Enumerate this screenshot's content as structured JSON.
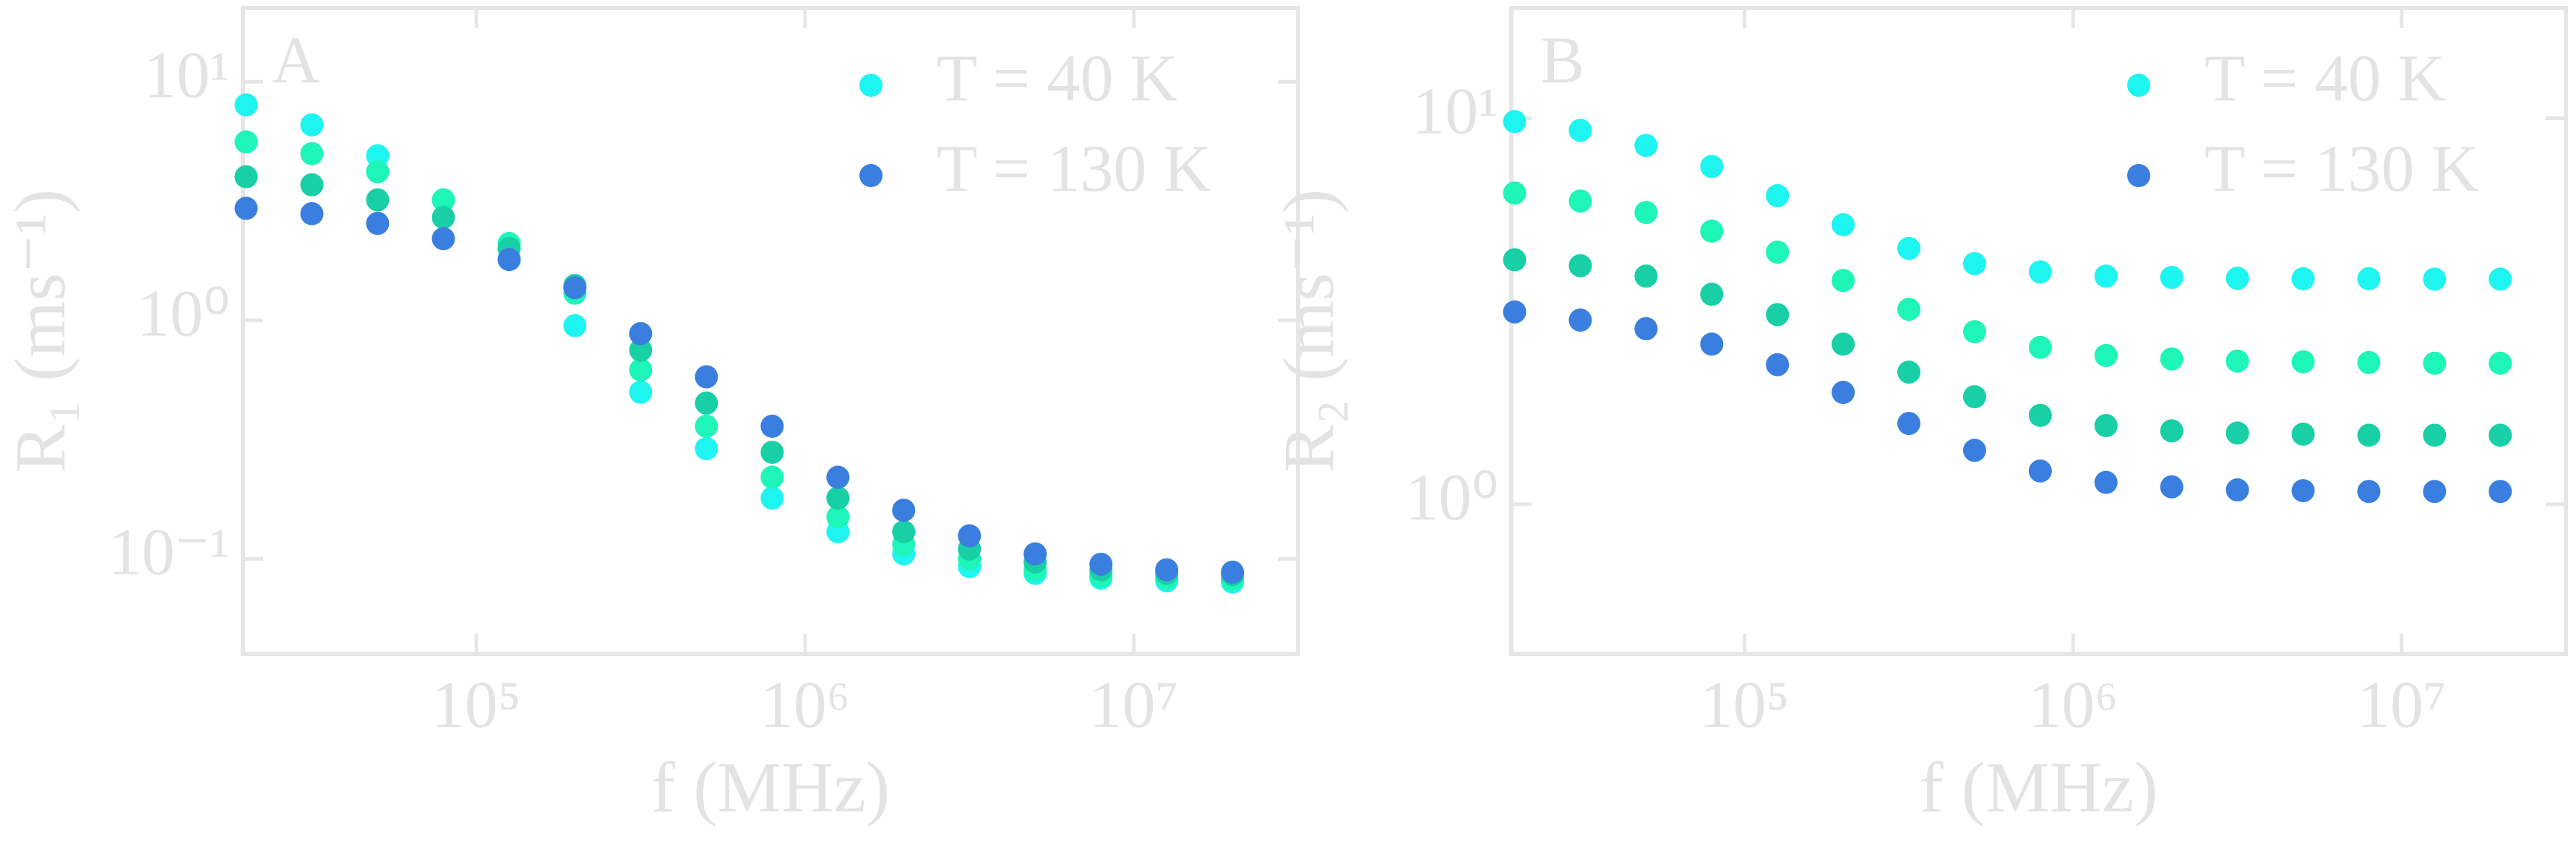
{
  "chart_data": [
    {
      "type": "scatter",
      "panel_label": "A",
      "xlabel": "f (MHz)",
      "ylabel": "R₁ (ms⁻¹)",
      "log_x": true,
      "log_y": true,
      "grid": false,
      "legend": "upper right",
      "xlim": [
        19500,
        31600000
      ],
      "ylim": [
        0.04,
        20.4
      ],
      "xticks": [
        {
          "value": 100000,
          "label": "10⁵"
        },
        {
          "value": 1000000,
          "label": "10⁶"
        },
        {
          "value": 10000000,
          "label": "10⁷"
        }
      ],
      "yticks": [
        {
          "value": 10,
          "label": "10¹"
        },
        {
          "value": 1,
          "label": "10⁰"
        },
        {
          "value": 0.1,
          "label": "10⁻¹"
        }
      ],
      "x": [
        19953,
        31623,
        50119,
        79433,
        125893,
        199526,
        316228,
        501187,
        794328,
        1258925,
        1995262,
        3162278,
        5011872,
        7943282,
        12589254,
        19952623
      ],
      "series": [
        {
          "name": "T = 40 K",
          "color": "#1ef4f0",
          "values": [
            8.0,
            6.6,
            4.9,
            3.2,
            1.8,
            0.95,
            0.5,
            0.29,
            0.18,
            0.13,
            0.105,
            0.093,
            0.087,
            0.083,
            0.081,
            0.08
          ]
        },
        {
          "color": "#1ef5b8",
          "values": [
            5.6,
            5.0,
            4.2,
            3.2,
            2.1,
            1.3,
            0.62,
            0.36,
            0.22,
            0.15,
            0.115,
            0.1,
            0.09,
            0.085,
            0.083,
            0.082
          ]
        },
        {
          "color": "#18cfa6",
          "values": [
            4.0,
            3.7,
            3.2,
            2.7,
            2.0,
            1.4,
            0.75,
            0.45,
            0.28,
            0.18,
            0.13,
            0.11,
            0.097,
            0.09,
            0.087,
            0.086
          ]
        },
        {
          "name": "T = 130 K",
          "color": "#3a7fdf",
          "values": [
            2.95,
            2.8,
            2.55,
            2.2,
            1.8,
            1.37,
            0.88,
            0.58,
            0.36,
            0.22,
            0.16,
            0.125,
            0.105,
            0.095,
            0.09,
            0.088
          ]
        }
      ]
    },
    {
      "type": "scatter",
      "panel_label": "B",
      "xlabel": "f (MHz)",
      "ylabel": "R₂ (ms⁻¹)",
      "log_x": true,
      "log_y": true,
      "grid": false,
      "legend": "upper right",
      "xlim": [
        19500,
        31600000
      ],
      "ylim": [
        0.41,
        19.3
      ],
      "xticks": [
        {
          "value": 100000,
          "label": "10⁵"
        },
        {
          "value": 1000000,
          "label": "10⁶"
        },
        {
          "value": 10000000,
          "label": "10⁷"
        }
      ],
      "yticks": [
        {
          "value": 10,
          "label": "10¹"
        },
        {
          "value": 1,
          "label": "10⁰"
        }
      ],
      "x": [
        19953,
        31623,
        50119,
        79433,
        125893,
        199526,
        316228,
        501187,
        794328,
        1258925,
        1995262,
        3162278,
        5011872,
        7943282,
        12589254,
        19952623
      ],
      "series": [
        {
          "name": "T = 40 K",
          "color": "#1ef4f0",
          "values": [
            9.8,
            9.3,
            8.5,
            7.5,
            6.3,
            5.3,
            4.6,
            4.2,
            4.0,
            3.9,
            3.87,
            3.85,
            3.84,
            3.84,
            3.83,
            3.83
          ]
        },
        {
          "color": "#1ef5b8",
          "values": [
            6.4,
            6.1,
            5.7,
            5.1,
            4.5,
            3.8,
            3.2,
            2.8,
            2.55,
            2.43,
            2.38,
            2.35,
            2.34,
            2.33,
            2.32,
            2.32
          ]
        },
        {
          "color": "#18cfa6",
          "values": [
            4.3,
            4.15,
            3.9,
            3.5,
            3.1,
            2.6,
            2.2,
            1.9,
            1.7,
            1.6,
            1.55,
            1.53,
            1.52,
            1.51,
            1.51,
            1.51
          ]
        },
        {
          "name": "T = 130 K",
          "color": "#3a7fdf",
          "values": [
            3.15,
            3.0,
            2.85,
            2.6,
            2.3,
            1.95,
            1.62,
            1.38,
            1.22,
            1.14,
            1.11,
            1.09,
            1.085,
            1.08,
            1.08,
            1.08
          ]
        }
      ]
    }
  ]
}
